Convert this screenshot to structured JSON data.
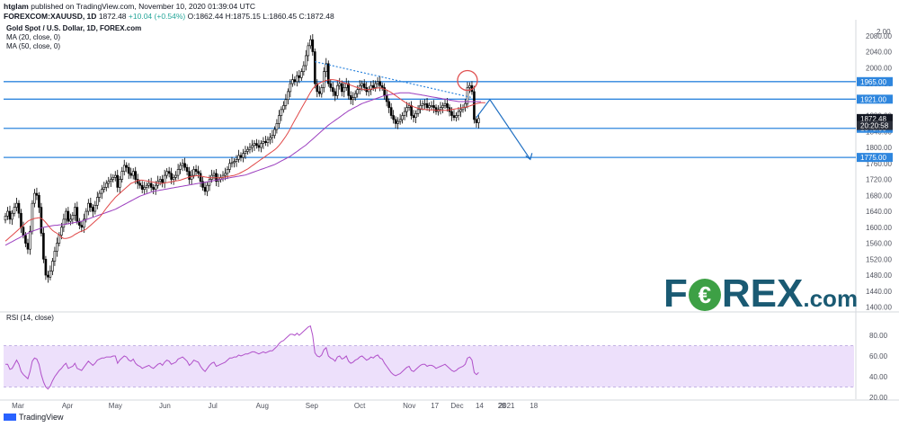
{
  "header": {
    "author": "htglam",
    "published": "published on TradingView.com, November 10, 2020 01:39:04 UTC",
    "symbol": "FOREXCOM:XAUUSD, 1D",
    "last": "1872.48",
    "change": "+10.04 (+0.54%)",
    "ohlc": "O:1862.44 H:1875.15 L:1860.45 C:1872.48"
  },
  "legend": {
    "title": "Gold Spot / U.S. Dollar, 1D, FOREX.com",
    "ma20": "MA (20, close, 0)",
    "ma50": "MA (50, close, 0)"
  },
  "rsi_label": "RSI (14, close)",
  "logo": {
    "part1": "F",
    "part2": "REX",
    "part3": ".com"
  },
  "footer": {
    "brand": "TradingView"
  },
  "colors": {
    "up": "#ffffff",
    "down": "#000000",
    "ma20": "#e04848",
    "ma50": "#9c3fbf",
    "hline": "#2e86de",
    "rsi": "#b04fc9",
    "rsi_band": "#ede0fb",
    "logo": "#1a5a73",
    "logo_accent": "#3da045"
  },
  "chart_data": {
    "type": "candlestick",
    "title": "Gold Spot / U.S. Dollar, 1D, FOREX.com",
    "price_ylim": [
      1390,
      2120
    ],
    "price_ticks": [
      2080,
      2040,
      2000,
      1960,
      1920,
      1880,
      1840,
      1800,
      1760,
      1720,
      1680,
      1640,
      1600,
      1560,
      1520,
      1480,
      1440,
      1400
    ],
    "top_tick_label": "2.00",
    "horizontal_levels": [
      {
        "label": "1965.00",
        "value": 1965
      },
      {
        "label": "1921.00",
        "value": 1921
      },
      {
        "label": "1848.00",
        "value": 1848
      },
      {
        "label": "1775.00",
        "value": 1775
      }
    ],
    "price_tags": [
      {
        "label": "1872.48",
        "value": 1872.48
      },
      {
        "label": "20:20:58",
        "value": 1855
      }
    ],
    "x_labels": [
      "Mar",
      "Apr",
      "May",
      "Jun",
      "Jul",
      "Aug",
      "Sep",
      "Oct",
      "Nov",
      "17",
      "Dec",
      "14",
      "28",
      "2021",
      "18"
    ],
    "x_label_days": [
      0,
      31,
      61,
      92,
      122,
      153,
      184,
      214,
      245,
      261,
      275,
      289,
      303,
      306,
      323
    ],
    "closes": [
      1628,
      1640,
      1620,
      1635,
      1650,
      1660,
      1635,
      1600,
      1580,
      1560,
      1545,
      1590,
      1660,
      1685,
      1680,
      1650,
      1585,
      1520,
      1480,
      1475,
      1490,
      1515,
      1540,
      1560,
      1580,
      1600,
      1620,
      1640,
      1615,
      1620,
      1630,
      1650,
      1615,
      1605,
      1600,
      1620,
      1640,
      1660,
      1650,
      1640,
      1655,
      1675,
      1685,
      1695,
      1700,
      1710,
      1715,
      1720,
      1725,
      1730,
      1700,
      1720,
      1740,
      1755,
      1750,
      1735,
      1730,
      1740,
      1720,
      1710,
      1705,
      1695,
      1700,
      1705,
      1710,
      1700,
      1695,
      1705,
      1715,
      1720,
      1712,
      1730,
      1740,
      1735,
      1720,
      1725,
      1730,
      1745,
      1755,
      1760,
      1750,
      1740,
      1720,
      1730,
      1745,
      1740,
      1735,
      1715,
      1700,
      1690,
      1705,
      1720,
      1730,
      1735,
      1715,
      1720,
      1725,
      1730,
      1735,
      1745,
      1760,
      1762,
      1765,
      1770,
      1780,
      1775,
      1785,
      1790,
      1795,
      1800,
      1805,
      1810,
      1805,
      1800,
      1810,
      1815,
      1812,
      1820,
      1825,
      1830,
      1845,
      1860,
      1880,
      1895,
      1905,
      1920,
      1940,
      1960,
      1970,
      1965,
      1980,
      1975,
      1990,
      2005,
      2030,
      2055,
      2070,
      2040,
      1960,
      1940,
      1935,
      1950,
      1990,
      2010,
      1960,
      1950,
      1940,
      1930,
      1955,
      1960,
      1940,
      1950,
      1960,
      1930,
      1920,
      1925,
      1935,
      1945,
      1955,
      1960,
      1950,
      1940,
      1945,
      1955,
      1950,
      1960,
      1965,
      1955,
      1950,
      1930,
      1915,
      1900,
      1880,
      1870,
      1860,
      1865,
      1870,
      1880,
      1890,
      1900,
      1905,
      1880,
      1875,
      1885,
      1895,
      1905,
      1910,
      1910,
      1900,
      1905,
      1905,
      1900,
      1890,
      1895,
      1900,
      1905,
      1910,
      1900,
      1890,
      1880,
      1875,
      1880,
      1890,
      1895,
      1900,
      1910,
      1950,
      1955,
      1940,
      1870,
      1862,
      1872.48
    ],
    "ma20": [
      1565,
      1570,
      1575,
      1580,
      1585,
      1590,
      1595,
      1600,
      1605,
      1610,
      1615,
      1618,
      1620,
      1622,
      1623,
      1624,
      1622,
      1618,
      1612,
      1605,
      1598,
      1592,
      1588,
      1585,
      1580,
      1575,
      1572,
      1572,
      1573,
      1575,
      1578,
      1582,
      1585,
      1588,
      1590,
      1592,
      1595,
      1600,
      1605,
      1610,
      1615,
      1620,
      1625,
      1632,
      1640,
      1648,
      1655,
      1662,
      1668,
      1675,
      1680,
      1685,
      1690,
      1695,
      1700,
      1705,
      1710,
      1712,
      1715,
      1717,
      1718,
      1718,
      1717,
      1716,
      1715,
      1714,
      1713,
      1712,
      1711,
      1710,
      1710,
      1711,
      1712,
      1713,
      1714,
      1715,
      1716,
      1717,
      1718,
      1720,
      1722,
      1724,
      1726,
      1727,
      1728,
      1729,
      1729,
      1728,
      1727,
      1726,
      1725,
      1724,
      1724,
      1724,
      1724,
      1724,
      1724,
      1725,
      1726,
      1727,
      1728,
      1729,
      1730,
      1732,
      1734,
      1737,
      1740,
      1743,
      1746,
      1750,
      1754,
      1758,
      1762,
      1766,
      1770,
      1774,
      1778,
      1782,
      1786,
      1790,
      1794,
      1799,
      1805,
      1812,
      1820,
      1828,
      1837,
      1847,
      1858,
      1868,
      1878,
      1888,
      1898,
      1908,
      1918,
      1928,
      1938,
      1947,
      1953,
      1958,
      1961,
      1964,
      1966,
      1968,
      1969,
      1970,
      1970,
      1969,
      1968,
      1966,
      1964,
      1962,
      1960,
      1958,
      1956,
      1954,
      1952,
      1950,
      1948,
      1946,
      1945,
      1945,
      1945,
      1946,
      1947,
      1948,
      1949,
      1949,
      1948,
      1946,
      1944,
      1941,
      1938,
      1934,
      1930,
      1926,
      1922,
      1918,
      1914,
      1910,
      1907,
      1904,
      1902,
      1900,
      1898,
      1897,
      1896,
      1895,
      1895,
      1894,
      1894,
      1894,
      1893,
      1893,
      1893,
      1893,
      1893,
      1893,
      1894,
      1895,
      1896,
      1897,
      1898,
      1899,
      1900,
      1901,
      1902,
      1904,
      1906,
      1908,
      1910,
      1911,
      1912,
      1912,
      1912
    ],
    "ma50": [
      1555,
      1558,
      1561,
      1564,
      1567,
      1570,
      1573,
      1576,
      1579,
      1582,
      1585,
      1588,
      1590,
      1592,
      1594,
      1596,
      1598,
      1600,
      1601,
      1602,
      1603,
      1604,
      1605,
      1605,
      1606,
      1606,
      1607,
      1608,
      1609,
      1610,
      1611,
      1612,
      1613,
      1614,
      1615,
      1617,
      1619,
      1621,
      1623,
      1625,
      1627,
      1629,
      1631,
      1633,
      1635,
      1637,
      1639,
      1641,
      1643,
      1645,
      1648,
      1651,
      1654,
      1657,
      1660,
      1663,
      1666,
      1669,
      1672,
      1675,
      1678,
      1680,
      1682,
      1684,
      1686,
      1688,
      1690,
      1691,
      1692,
      1693,
      1694,
      1695,
      1696,
      1697,
      1698,
      1699,
      1700,
      1701,
      1702,
      1703,
      1704,
      1705,
      1706,
      1707,
      1708,
      1709,
      1710,
      1711,
      1712,
      1713,
      1714,
      1715,
      1716,
      1717,
      1718,
      1719,
      1720,
      1721,
      1722,
      1723,
      1724,
      1725,
      1726,
      1727,
      1728,
      1729,
      1730,
      1731,
      1733,
      1735,
      1737,
      1739,
      1741,
      1743,
      1745,
      1747,
      1749,
      1751,
      1753,
      1755,
      1757,
      1760,
      1763,
      1766,
      1769,
      1772,
      1775,
      1778,
      1782,
      1786,
      1790,
      1794,
      1798,
      1802,
      1806,
      1811,
      1816,
      1821,
      1826,
      1831,
      1836,
      1841,
      1846,
      1851,
      1856,
      1860,
      1864,
      1868,
      1872,
      1876,
      1880,
      1884,
      1888,
      1892,
      1895,
      1898,
      1901,
      1904,
      1907,
      1910,
      1912,
      1914,
      1916,
      1918,
      1920,
      1922,
      1924,
      1926,
      1928,
      1930,
      1931,
      1932,
      1933,
      1934,
      1935,
      1936,
      1937,
      1937,
      1937,
      1937,
      1937,
      1936,
      1935,
      1934,
      1933,
      1932,
      1931,
      1930,
      1929,
      1928,
      1927,
      1926,
      1925,
      1924,
      1923,
      1922,
      1921,
      1920,
      1919,
      1918,
      1917,
      1916,
      1915,
      1915,
      1915,
      1915,
      1915,
      1915,
      1915,
      1915,
      1915,
      1915,
      1915
    ],
    "rsi_ylim": [
      20,
      100
    ],
    "rsi_ticks": [
      80,
      60,
      40,
      20
    ],
    "rsi_band": [
      30,
      70
    ],
    "rsi": [
      52,
      52,
      47,
      48,
      52,
      56,
      52,
      45,
      42,
      40,
      38,
      45,
      55,
      58,
      57,
      52,
      42,
      35,
      30,
      28,
      31,
      36,
      40,
      43,
      46,
      48,
      51,
      53,
      48,
      49,
      50,
      53,
      48,
      47,
      46,
      49,
      52,
      55,
      53,
      51,
      53,
      56,
      57,
      58,
      58,
      59,
      59,
      59,
      60,
      60,
      53,
      56,
      58,
      60,
      59,
      56,
      55,
      57,
      53,
      51,
      50,
      48,
      49,
      50,
      51,
      49,
      48,
      50,
      52,
      53,
      51,
      54,
      56,
      55,
      52,
      53,
      54,
      57,
      58,
      59,
      57,
      55,
      51,
      53,
      56,
      55,
      54,
      50,
      47,
      45,
      48,
      51,
      53,
      54,
      50,
      51,
      52,
      53,
      54,
      56,
      58,
      58,
      59,
      59,
      61,
      60,
      61,
      62,
      62,
      63,
      64,
      64,
      63,
      62,
      63,
      64,
      63,
      64,
      65,
      65,
      67,
      69,
      72,
      74,
      75,
      77,
      79,
      81,
      81,
      80,
      82,
      80,
      82,
      84,
      86,
      88,
      89,
      80,
      63,
      60,
      59,
      61,
      66,
      68,
      60,
      58,
      57,
      55,
      59,
      60,
      57,
      58,
      60,
      55,
      53,
      54,
      56,
      57,
      59,
      60,
      58,
      56,
      57,
      59,
      58,
      60,
      61,
      58,
      57,
      53,
      50,
      47,
      44,
      42,
      41,
      42,
      43,
      45,
      47,
      49,
      50,
      46,
      45,
      47,
      49,
      51,
      52,
      52,
      50,
      51,
      51,
      50,
      48,
      49,
      50,
      51,
      52,
      50,
      48,
      46,
      45,
      46,
      48,
      49,
      50,
      52,
      58,
      59,
      56,
      44,
      42,
      44
    ]
  }
}
